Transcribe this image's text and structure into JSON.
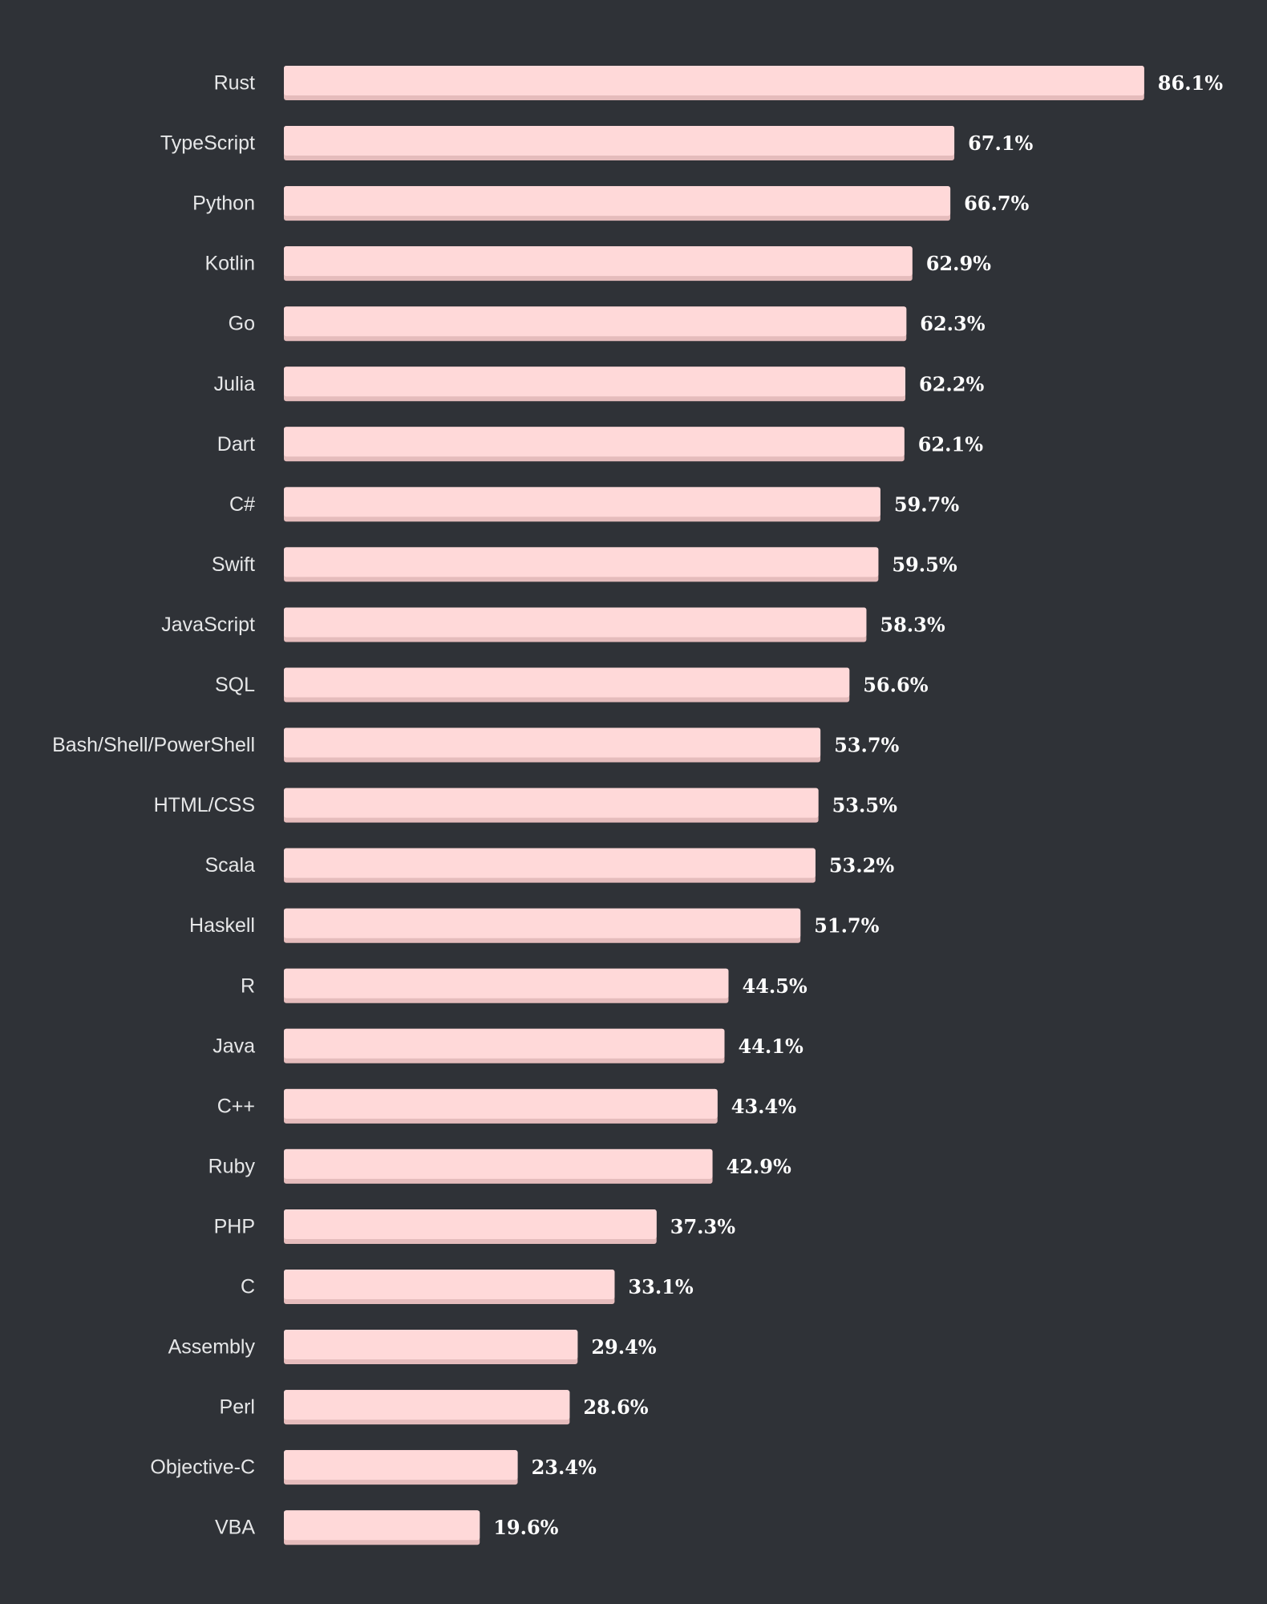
{
  "colors": {
    "background": "#2f3237",
    "bar": "#ffd9d9",
    "bar_shadow": "#e5bcbc",
    "category_text": "#e6e7e8",
    "value_text": "#ffffff"
  },
  "chart_data": {
    "type": "bar",
    "orientation": "horizontal",
    "title": "",
    "xlabel": "",
    "ylabel": "",
    "grid": false,
    "legend": "none",
    "xlim": [
      0,
      100
    ],
    "categories": [
      "Rust",
      "TypeScript",
      "Python",
      "Kotlin",
      "Go",
      "Julia",
      "Dart",
      "C#",
      "Swift",
      "JavaScript",
      "SQL",
      "Bash/Shell/PowerShell",
      "HTML/CSS",
      "Scala",
      "Haskell",
      "R",
      "Java",
      "C++",
      "Ruby",
      "PHP",
      "C",
      "Assembly",
      "Perl",
      "Objective-C",
      "VBA"
    ],
    "values": [
      86.1,
      67.1,
      66.7,
      62.9,
      62.3,
      62.2,
      62.1,
      59.7,
      59.5,
      58.3,
      56.6,
      53.7,
      53.5,
      53.2,
      51.7,
      44.5,
      44.1,
      43.4,
      42.9,
      37.3,
      33.1,
      29.4,
      28.6,
      23.4,
      19.6
    ],
    "value_labels": [
      "86.1%",
      "67.1%",
      "66.7%",
      "62.9%",
      "62.3%",
      "62.2%",
      "62.1%",
      "59.7%",
      "59.5%",
      "58.3%",
      "56.6%",
      "53.7%",
      "53.5%",
      "53.2%",
      "51.7%",
      "44.5%",
      "44.1%",
      "43.4%",
      "42.9%",
      "37.3%",
      "33.1%",
      "29.4%",
      "28.6%",
      "23.4%",
      "19.6%"
    ]
  }
}
